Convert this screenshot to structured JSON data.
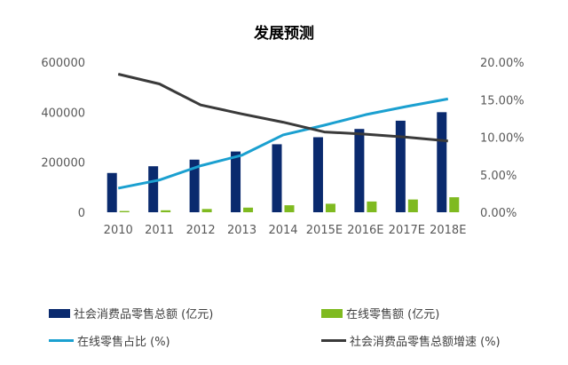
{
  "chart_data": {
    "type": "bar",
    "title": "发展预测",
    "categories": [
      "2010",
      "2011",
      "2012",
      "2013",
      "2014",
      "2015E",
      "2016E",
      "2017E",
      "2018E"
    ],
    "series": [
      {
        "name": "社会消费品零售总额 (亿元)",
        "kind": "bar",
        "axis": "left",
        "color": "#0a2a6e",
        "values": [
          156998,
          183919,
          210307,
          242843,
          271896,
          300000,
          333000,
          366000,
          400000
        ]
      },
      {
        "name": "在线零售额 (亿元)",
        "kind": "bar",
        "axis": "left",
        "color": "#7fba20",
        "values": [
          5000,
          7800,
          13000,
          18500,
          28000,
          34000,
          43000,
          51000,
          60000
        ]
      },
      {
        "name": "在线零售占比 (%)",
        "kind": "line",
        "axis": "right",
        "color": "#1ba0d0",
        "values": [
          3.2,
          4.3,
          6.2,
          7.6,
          10.3,
          11.6,
          13.0,
          14.1,
          15.1
        ]
      },
      {
        "name": "社会消费品零售总额增速 (%)",
        "kind": "line",
        "axis": "right",
        "color": "#3a3a3a",
        "values": [
          18.4,
          17.1,
          14.3,
          13.1,
          12.0,
          10.7,
          10.4,
          10.0,
          9.5
        ]
      }
    ],
    "y_left": {
      "min": 0,
      "max": 600000,
      "ticks": [
        "0",
        "200000",
        "400000",
        "600000"
      ],
      "tick_values": [
        0,
        200000,
        400000,
        600000
      ]
    },
    "y_right": {
      "min": 0,
      "max": 20,
      "ticks": [
        "0.00%",
        "5.00%",
        "10.00%",
        "15.00%",
        "20.00%"
      ],
      "tick_values": [
        0,
        5,
        10,
        15,
        20
      ]
    },
    "grid": false,
    "legend_position": "bottom"
  }
}
